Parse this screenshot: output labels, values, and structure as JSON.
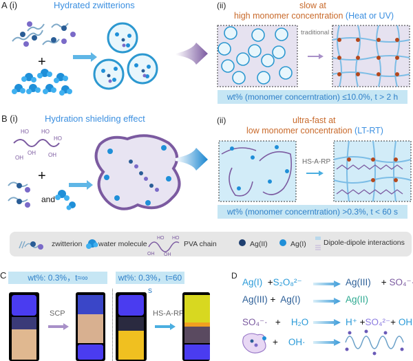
{
  "panelA": {
    "label": "A (i)",
    "title": "Hydrated zwitterions",
    "plus": "+",
    "ii_label": "(ii)",
    "ii_title_line1": "slow at",
    "ii_title_line2": "high monomer concentration",
    "ii_condition": "(Heat or UV)",
    "method": "traditional method",
    "band": "wt% (monomer concerntration) ≤10.0%, t > 2 h"
  },
  "panelB": {
    "label": "B (i)",
    "title": "Hydration shielding effect",
    "plus": "+",
    "and": "and",
    "ii_label": "(ii)",
    "ii_title_line1": "ultra-fast at",
    "ii_title_line2": "low monomer concentration",
    "ii_condition": "(LT-RT)",
    "method": "HS-A-RP",
    "band": "wt% (monomer concerntration) >0.3%, t < 60 s"
  },
  "legend": {
    "zwitterion": "zwitterion",
    "water": "water molecule",
    "pva": "PVA chain",
    "ag2": "Ag(II)",
    "ag1": "Ag(I)",
    "dipole": "Dipole-dipole interactions",
    "pva_groups": [
      "HO",
      "HO",
      "OH",
      "OH"
    ]
  },
  "panelC": {
    "label": "C",
    "band1": "wt%: 0.3%，t≈∞",
    "band2": "wt%: 0.3%，t=60 s",
    "method1": "SCP",
    "method2": "HS-A-RP"
  },
  "panelD": {
    "label": "D",
    "rows": [
      {
        "a": "Ag(I)",
        "op": "+",
        "b": "S₂O₈²⁻",
        "c": "Ag(III)",
        "op2": "+",
        "d": "SO₄⁻·"
      },
      {
        "a": "Ag(III)",
        "op": "+",
        "b": "Ag(I)",
        "c": "Ag(II)"
      },
      {
        "a": "SO₄⁻·",
        "op": "+",
        "b": "H₂O",
        "c": "H⁺",
        "op2": "+",
        "d": "SO₄²⁻",
        "op3": "+",
        "e": "OH·"
      },
      {
        "op": "+",
        "b": "OH·"
      }
    ]
  },
  "colors": {
    "blue_text": "#3b8fe0",
    "orange_text": "#c8692a",
    "band": "#c6e6f4",
    "pva": "#7b5aa0",
    "crosslink": "#b5481d"
  }
}
